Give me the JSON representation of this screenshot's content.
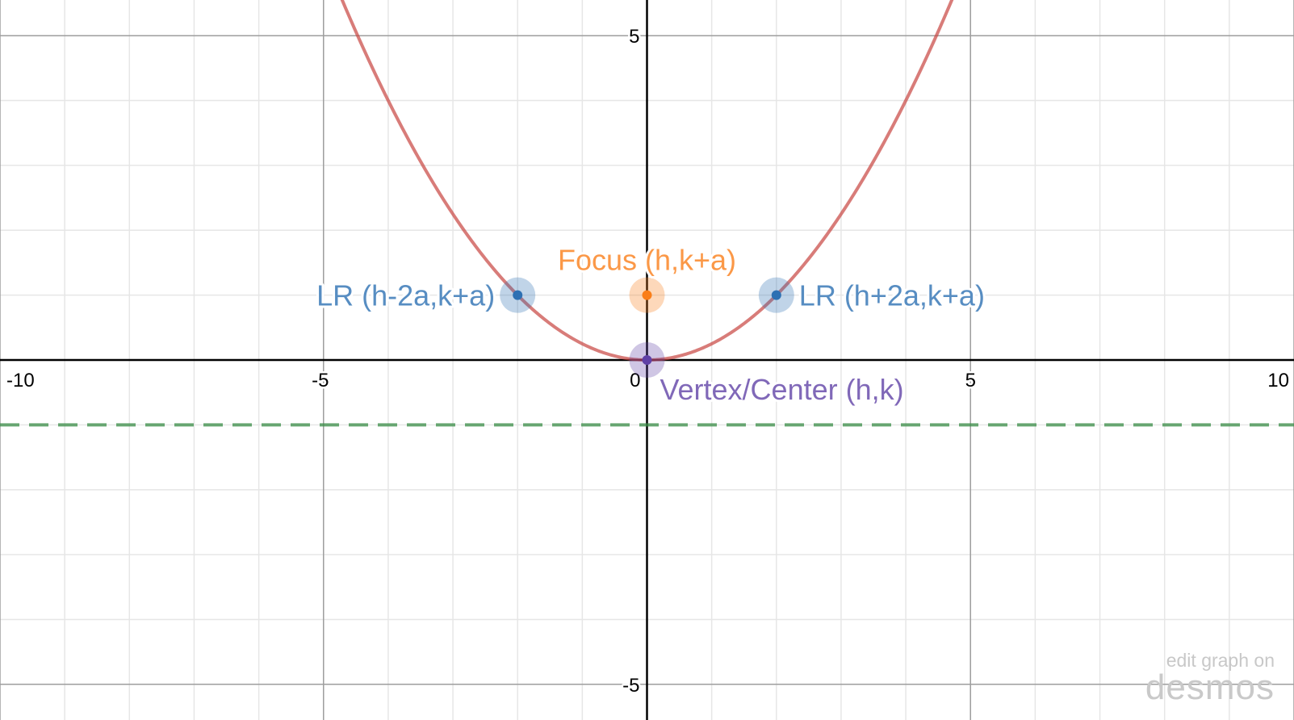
{
  "app": {
    "badge_text": "edit graph on",
    "badge_logo": "desmos"
  },
  "colors": {
    "parabola": "#c74440",
    "directrix": "#388c46",
    "latus_rectum": "#2d70b3",
    "focus": "#fa7e19",
    "vertex": "#6042a6",
    "axis": "#000000",
    "major_grid": "#9e9e9e",
    "minor_grid": "#e6e6e6"
  },
  "chart_data": {
    "type": "line",
    "title": "",
    "xlabel": "",
    "ylabel": "",
    "xlim": [
      -10.0,
      10.0
    ],
    "ylim": [
      -5.55,
      5.55
    ],
    "grid": true,
    "minor_step": 1,
    "major_step": 5,
    "x_ticks": [
      {
        "value": -10,
        "label": "-10"
      },
      {
        "value": -5,
        "label": "-5"
      },
      {
        "value": 0,
        "label": "0"
      },
      {
        "value": 5,
        "label": "5"
      },
      {
        "value": 10,
        "label": "10"
      }
    ],
    "y_ticks": [
      {
        "value": 5,
        "label": "5"
      },
      {
        "value": -5,
        "label": "-5"
      }
    ],
    "series": [
      {
        "kind": "curve",
        "equation": "y = x^2 / 4",
        "h": 0,
        "k": 0,
        "a": 1,
        "color": "#c74440",
        "style": "solid"
      },
      {
        "kind": "hline",
        "y": -1,
        "color": "#388c46",
        "style": "dashed"
      }
    ],
    "points": [
      {
        "x": -2,
        "y": 1,
        "label": "LR (h-2a,k+a)",
        "color": "#2d70b3",
        "label_side": "left"
      },
      {
        "x": 0,
        "y": 1,
        "label": "Focus (h,k+a)",
        "color": "#fa7e19",
        "label_side": "above"
      },
      {
        "x": 2,
        "y": 1,
        "label": "LR (h+2a,k+a)",
        "color": "#2d70b3",
        "label_side": "right"
      },
      {
        "x": 0,
        "y": 0,
        "label": "Vertex/Center (h,k)",
        "color": "#6042a6",
        "label_side": "below-right"
      }
    ]
  }
}
